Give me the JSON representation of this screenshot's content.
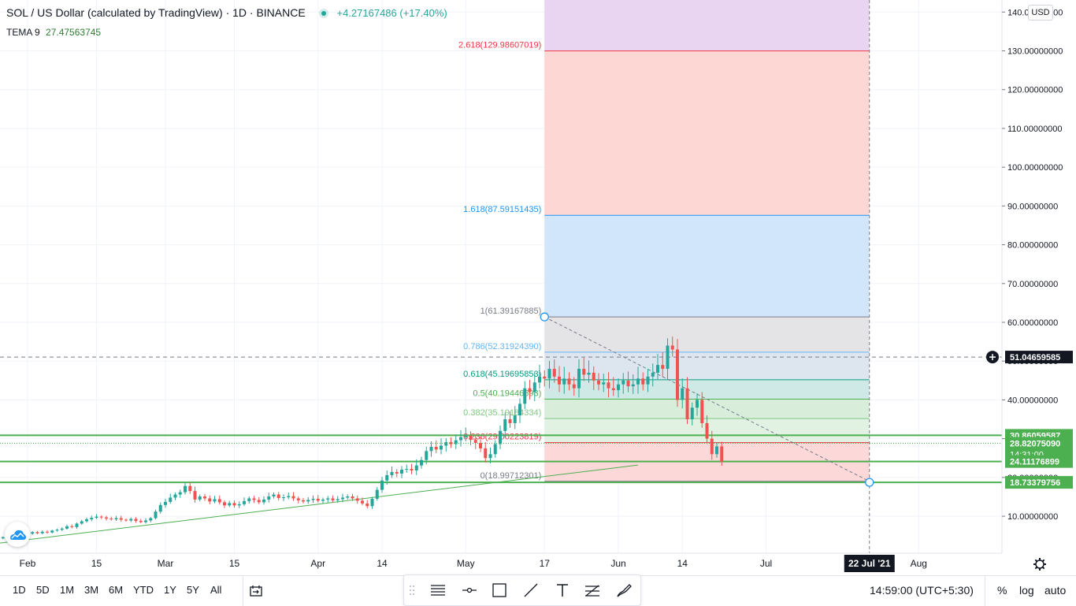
{
  "header": {
    "title": "SOL / US Dollar (calculated by TradingView) · 1D · BINANCE",
    "change": "+4.27167486 (+17.40%)",
    "indicator_name": "TEMA 9",
    "indicator_value": "27.47563745",
    "currency_badge": "USD"
  },
  "colors": {
    "up": "#26a69a",
    "down": "#ef5350",
    "trendline": "#4caf50"
  },
  "chart_data": {
    "type": "candlestick",
    "title": "SOL / US Dollar (calculated by TradingView) · 1D · BINANCE",
    "ylim": [
      0,
      143
    ],
    "y_ticks": [
      "10.00000000",
      "20.00000000",
      "30.00000000",
      "40.00000000",
      "50.00000000",
      "60.00000000",
      "70.00000000",
      "80.00000000",
      "90.00000000",
      "100.00000000",
      "110.00000000",
      "120.00000000",
      "130.00000000",
      "140.00000000"
    ],
    "x_ticks": [
      {
        "label": "Feb",
        "date": "2021-02-01"
      },
      {
        "label": "15",
        "date": "2021-02-15"
      },
      {
        "label": "Mar",
        "date": "2021-03-01"
      },
      {
        "label": "15",
        "date": "2021-03-15"
      },
      {
        "label": "Apr",
        "date": "2021-04-01"
      },
      {
        "label": "14",
        "date": "2021-04-14"
      },
      {
        "label": "May",
        "date": "2021-05-01"
      },
      {
        "label": "17",
        "date": "2021-05-17"
      },
      {
        "label": "Jun",
        "date": "2021-06-01"
      },
      {
        "label": "14",
        "date": "2021-06-14"
      },
      {
        "label": "Jul",
        "date": "2021-07-01"
      },
      {
        "label": "Aug",
        "date": "2021-08-01"
      }
    ],
    "x_marker": {
      "label": "22 Jul '21",
      "date": "2021-07-22"
    },
    "start_date": "2021-01-22",
    "closes": [
      4.2,
      3.8,
      3.6,
      4.0,
      4.3,
      4.6,
      4.9,
      4.7,
      4.9,
      5.1,
      5.5,
      5.9,
      5.6,
      6.0,
      5.8,
      6.3,
      6.5,
      6.8,
      7.4,
      7.2,
      8.1,
      8.7,
      9.2,
      9.6,
      9.9,
      9.7,
      9.4,
      9.2,
      9.5,
      9.1,
      8.9,
      9.3,
      8.8,
      8.5,
      8.9,
      9.5,
      11.2,
      12.9,
      13.7,
      14.8,
      15.6,
      16.2,
      17.8,
      16.5,
      14.3,
      15.1,
      14.6,
      13.8,
      14.4,
      13.6,
      12.8,
      13.4,
      12.8,
      13.1,
      13.9,
      14.6,
      14.2,
      13.6,
      14.3,
      15.1,
      15.6,
      14.7,
      14.9,
      15.2,
      14.6,
      14.1,
      13.8,
      14.2,
      14.5,
      14.0,
      14.3,
      14.6,
      14.1,
      14.4,
      14.8,
      15.1,
      14.6,
      14.0,
      13.3,
      12.6,
      14.5,
      16.8,
      19.2,
      20.6,
      21.4,
      21.0,
      22.0,
      22.2,
      21.8,
      23.1,
      24.5,
      26.8,
      27.9,
      27.2,
      28.2,
      29.1,
      28.6,
      29.6,
      30.4,
      30.8,
      29.7,
      28.9,
      27.5,
      25.0,
      26.0,
      28.6,
      32.0,
      35.0,
      34.0,
      36.0,
      39.0,
      43.0,
      42.0,
      44.5,
      46.0,
      45.5,
      48.0,
      46.0,
      44.0,
      45.5,
      44.0,
      43.0,
      48.0,
      46.5,
      47.0,
      45.0,
      44.0,
      44.5,
      43.0,
      42.5,
      44.0,
      45.0,
      43.5,
      44.0,
      45.5,
      44.0,
      46.0,
      47.0,
      49.0,
      48.0,
      54.0,
      53.0,
      40.0,
      43.0,
      35.0,
      38.0,
      40.0,
      34.0,
      30.0,
      26.0,
      28.0,
      24.11
    ],
    "current_price": "24.11176899",
    "fibonacci": {
      "levels": [
        {
          "label": "0(18.99712301)",
          "value": 18.99712301,
          "color": "#787b86"
        },
        {
          "label": "0.236(29.00223819)",
          "value": 29.00223819,
          "color": "#f23645"
        },
        {
          "label": "0.382(35.19184334)",
          "value": 35.19184334,
          "color": "#81c784"
        },
        {
          "label": "0.5(40.19446693)",
          "value": 40.19446693,
          "color": "#4caf50"
        },
        {
          "label": "0.618(45.19695853)",
          "value": 45.19695853,
          "color": "#089981"
        },
        {
          "label": "0.786(52.31924390)",
          "value": 52.3192439,
          "color": "#64b5f6"
        },
        {
          "label": "1(61.39167885)",
          "value": 61.39167885,
          "color": "#787b86"
        },
        {
          "label": "1.618(87.59151435)",
          "value": 87.59151435,
          "color": "#2196f3"
        },
        {
          "label": "2.618(129.98607019)",
          "value": 129.98607019,
          "color": "#f23645"
        }
      ],
      "top_value": 143,
      "start_date": "2021-05-17",
      "end_date": "2021-07-22"
    },
    "horizontal_lines": [
      {
        "value": 30.86059587,
        "label": "30.86059587"
      },
      {
        "value": 24.11176899,
        "label": "24.11176899"
      },
      {
        "value": 18.73379756,
        "label": "18.73379756"
      }
    ],
    "crosshair": {
      "value": 51.04659585,
      "label": "51.04659585"
    },
    "tema": {
      "value": 28.8207509,
      "label": "28.82075090",
      "countdown": "14:31:00"
    },
    "trendline": {
      "from": {
        "date": "2021-01-24",
        "value": 2.7
      },
      "to": {
        "date": "2021-06-05",
        "value": 23.2
      }
    }
  },
  "bottom": {
    "timeframes": [
      "1D",
      "5D",
      "1M",
      "3M",
      "6M",
      "YTD",
      "1Y",
      "5Y",
      "All"
    ],
    "clock": "14:59:00 (UTC+5:30)",
    "percent": "%",
    "log": "log",
    "auto": "auto"
  }
}
